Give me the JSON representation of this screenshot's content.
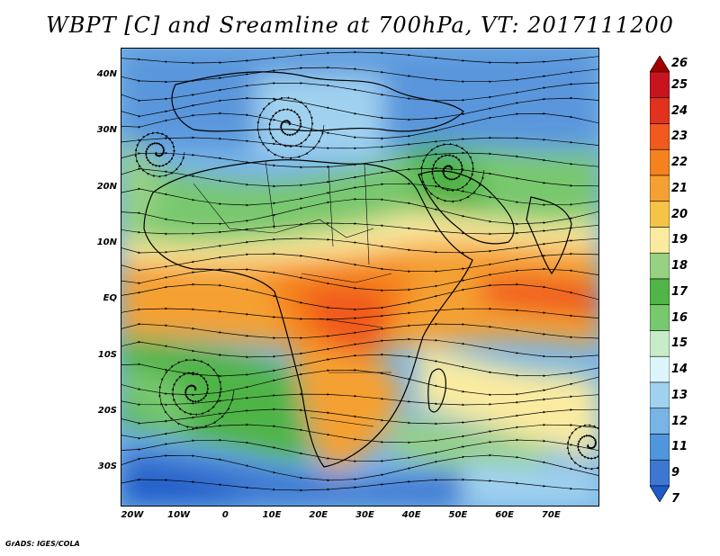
{
  "title": "WBPT [C] and Sreamline at 700hPa, VT: 2017111200",
  "credit": "GrADS: IGES/COLA",
  "map": {
    "lat_labels": [
      "40N",
      "30N",
      "20N",
      "10N",
      "EQ",
      "10S",
      "20S",
      "30S"
    ],
    "lat_values": [
      40,
      30,
      20,
      10,
      0,
      -10,
      -20,
      -30
    ],
    "lon_labels": [
      "20W",
      "10W",
      "0",
      "10E",
      "20E",
      "30E",
      "40E",
      "50E",
      "60E",
      "70E"
    ],
    "lon_values": [
      -20,
      -10,
      0,
      10,
      20,
      30,
      40,
      50,
      60,
      70
    ],
    "lat_range": [
      -36.5,
      45
    ],
    "lon_range": [
      -22.5,
      80
    ]
  },
  "colorbar": {
    "labels": [
      "26",
      "25",
      "24",
      "23",
      "22",
      "21",
      "20",
      "19",
      "18",
      "17",
      "16",
      "15",
      "14",
      "13",
      "12",
      "11",
      "9",
      "7"
    ],
    "colors": [
      "#a50000",
      "#c8141e",
      "#e1321e",
      "#f05a1e",
      "#f5821e",
      "#f5a032",
      "#f5c346",
      "#faeba0",
      "#96d282",
      "#50b446",
      "#78c86e",
      "#c8ebc8",
      "#dcf5fa",
      "#a0d2f0",
      "#78b4e6",
      "#5096dc",
      "#3c78d2",
      "#1e5ac8"
    ]
  }
}
